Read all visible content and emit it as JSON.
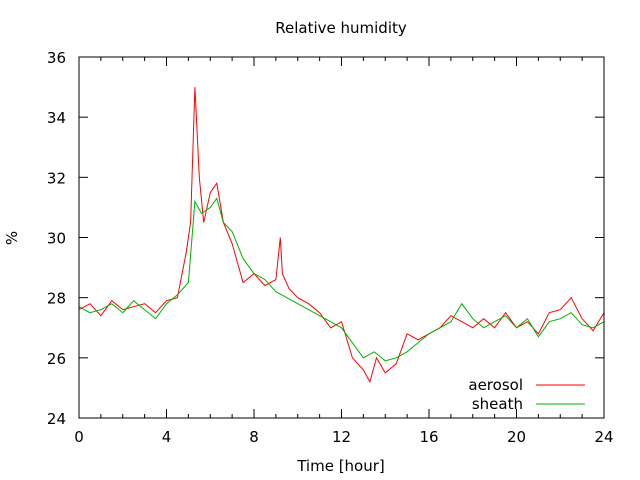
{
  "chart_data": {
    "type": "line",
    "title": "Relative humidity",
    "xlabel": "Time [hour]",
    "ylabel": "%",
    "xlim": [
      0,
      24
    ],
    "ylim": [
      24,
      36
    ],
    "xticks": [
      0,
      4,
      8,
      12,
      16,
      20,
      24
    ],
    "yticks": [
      24,
      26,
      28,
      30,
      32,
      34,
      36
    ],
    "grid": false,
    "legend": "bottom-right",
    "series": [
      {
        "name": "aerosol",
        "color": "#ff0000",
        "x": [
          0,
          0.5,
          1,
          1.5,
          2,
          2.5,
          3,
          3.5,
          4,
          4.5,
          4.9,
          5.1,
          5.3,
          5.5,
          5.7,
          6.0,
          6.3,
          6.6,
          7.0,
          7.5,
          8.0,
          8.5,
          9.0,
          9.2,
          9.3,
          9.6,
          10,
          10.5,
          11,
          11.5,
          12,
          12.5,
          13,
          13.3,
          13.6,
          14,
          14.5,
          15,
          15.5,
          16,
          16.5,
          17,
          17.5,
          18,
          18.5,
          19,
          19.5,
          20,
          20.5,
          21,
          21.5,
          22,
          22.5,
          23,
          23.5,
          24
        ],
        "y": [
          27.6,
          27.8,
          27.4,
          27.9,
          27.6,
          27.7,
          27.8,
          27.5,
          27.9,
          28.0,
          29.5,
          30.5,
          35.0,
          32.0,
          30.5,
          31.5,
          31.8,
          30.5,
          29.8,
          28.5,
          28.8,
          28.4,
          28.6,
          30.0,
          28.8,
          28.3,
          28.0,
          27.8,
          27.5,
          27.0,
          27.2,
          26.0,
          25.6,
          25.2,
          26.0,
          25.5,
          25.8,
          26.8,
          26.6,
          26.8,
          27.0,
          27.4,
          27.2,
          27.0,
          27.3,
          27.0,
          27.5,
          27.0,
          27.2,
          26.8,
          27.5,
          27.6,
          28.0,
          27.3,
          26.9,
          27.5
        ]
      },
      {
        "name": "sheath",
        "color": "#00b000",
        "x": [
          0,
          0.5,
          1,
          1.5,
          2,
          2.5,
          3,
          3.5,
          4,
          4.5,
          5.0,
          5.3,
          5.6,
          6.0,
          6.3,
          6.6,
          7.0,
          7.5,
          8.0,
          8.5,
          9.0,
          9.5,
          10,
          10.5,
          11,
          11.5,
          12,
          12.5,
          13,
          13.5,
          14,
          14.5,
          15,
          15.5,
          16,
          16.5,
          17,
          17.5,
          18,
          18.5,
          19,
          19.5,
          20,
          20.5,
          21,
          21.5,
          22,
          22.5,
          23,
          23.5,
          24
        ],
        "y": [
          27.7,
          27.5,
          27.6,
          27.8,
          27.5,
          27.9,
          27.6,
          27.3,
          27.8,
          28.1,
          28.5,
          31.2,
          30.8,
          31.0,
          31.3,
          30.5,
          30.2,
          29.3,
          28.8,
          28.6,
          28.2,
          28.0,
          27.8,
          27.6,
          27.4,
          27.2,
          27.0,
          26.5,
          26.0,
          26.2,
          25.9,
          26.0,
          26.2,
          26.5,
          26.8,
          27.0,
          27.2,
          27.8,
          27.3,
          27.0,
          27.2,
          27.4,
          27.0,
          27.3,
          26.7,
          27.2,
          27.3,
          27.5,
          27.1,
          27.0,
          27.2
        ]
      }
    ]
  }
}
